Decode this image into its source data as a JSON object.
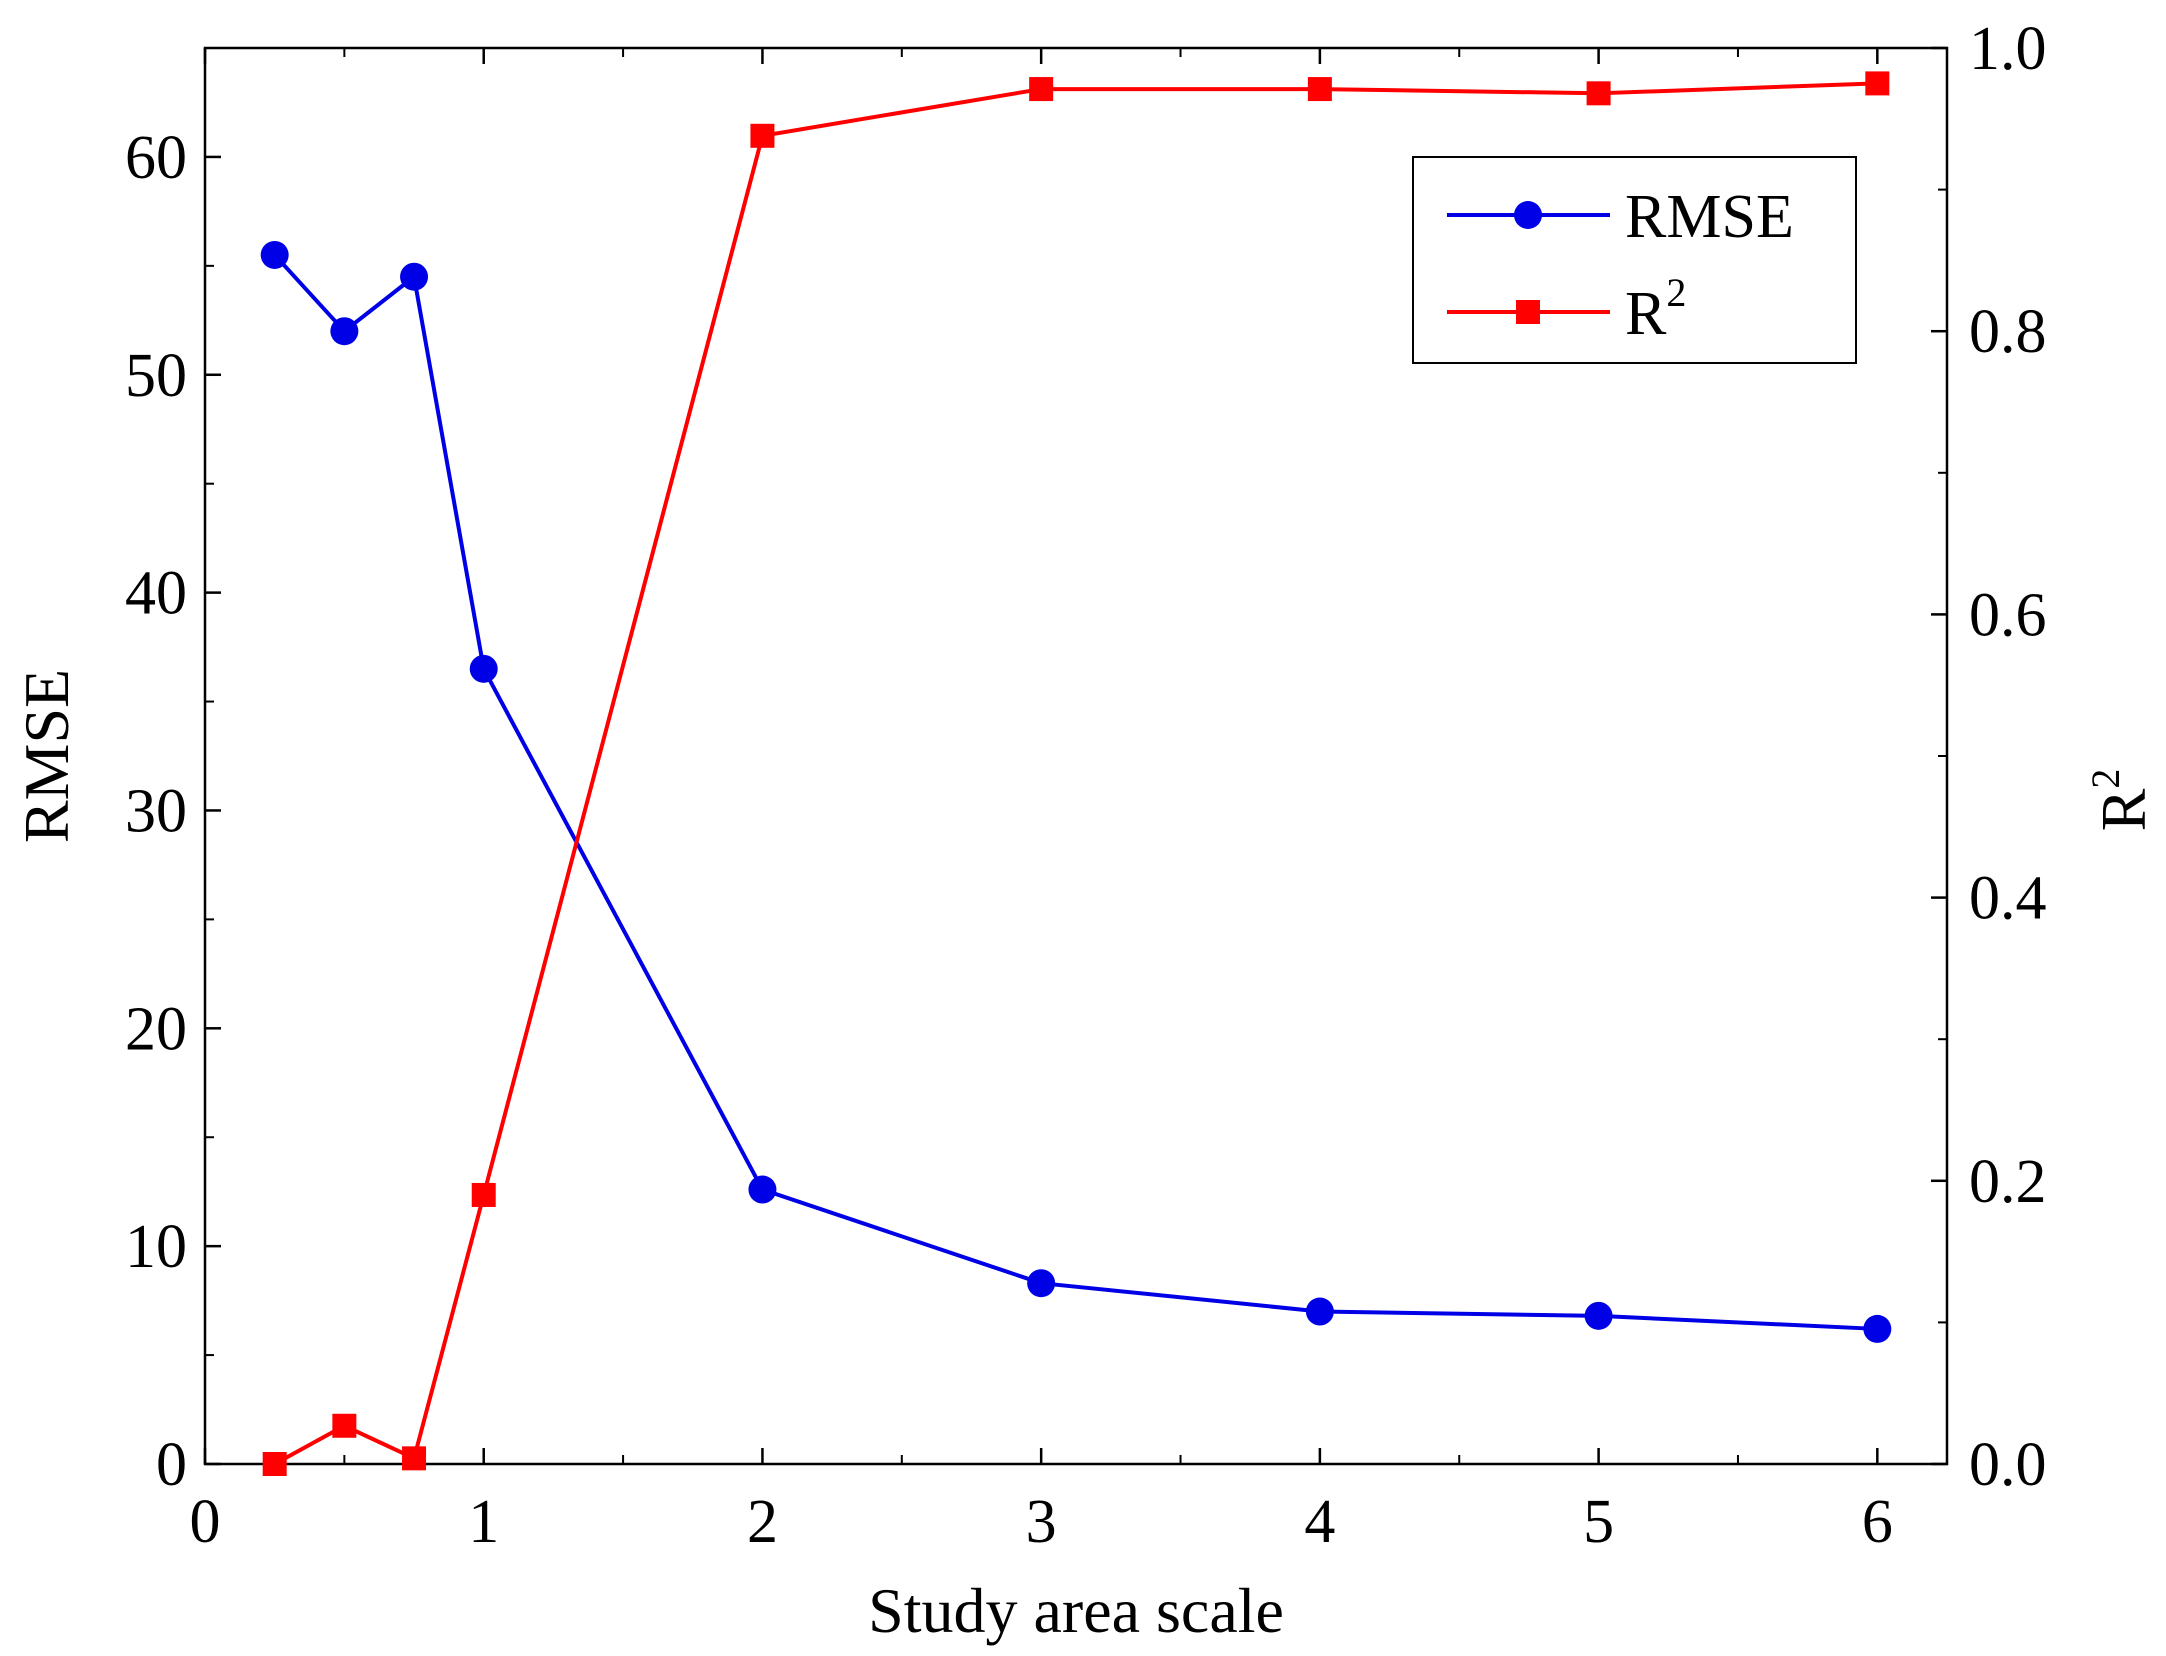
{
  "chart_data": {
    "type": "line",
    "title": "",
    "xlabel": "Study area scale",
    "ylabel_left": "RMSE",
    "ylabel_right": "R",
    "ylabel_right_sup": "2",
    "xlim": [
      0,
      6.25
    ],
    "ylim_left": [
      0,
      65
    ],
    "ylim_right": [
      0,
      1.0
    ],
    "x_ticks": [
      0,
      1,
      2,
      3,
      4,
      5,
      6
    ],
    "x_tick_labels": [
      "0",
      "1",
      "2",
      "3",
      "4",
      "5",
      "6"
    ],
    "y_left_ticks": [
      0,
      10,
      20,
      30,
      40,
      50,
      60
    ],
    "y_left_tick_labels": [
      "0",
      "10",
      "20",
      "30",
      "40",
      "50",
      "60"
    ],
    "y_right_ticks": [
      0,
      0.2,
      0.4,
      0.6,
      0.8,
      1.0
    ],
    "y_right_tick_labels": [
      "0.0",
      "0.2",
      "0.4",
      "0.6",
      "0.8",
      "1.0"
    ],
    "grid": false,
    "legend_position": "top-right",
    "x": [
      0.25,
      0.5,
      0.75,
      1,
      2,
      3,
      4,
      5,
      6
    ],
    "series": [
      {
        "name": "RMSE",
        "axis": "left",
        "color": "#0000e6",
        "marker": "circle",
        "values": [
          55.5,
          52.0,
          54.5,
          36.5,
          12.6,
          8.3,
          7.0,
          6.8,
          6.2
        ]
      },
      {
        "name": "R",
        "name_sup": "2",
        "axis": "right",
        "color": "#ff0000",
        "marker": "square",
        "values": [
          0.0,
          0.027,
          0.004,
          0.19,
          0.938,
          0.971,
          0.971,
          0.968,
          0.975
        ]
      }
    ]
  }
}
